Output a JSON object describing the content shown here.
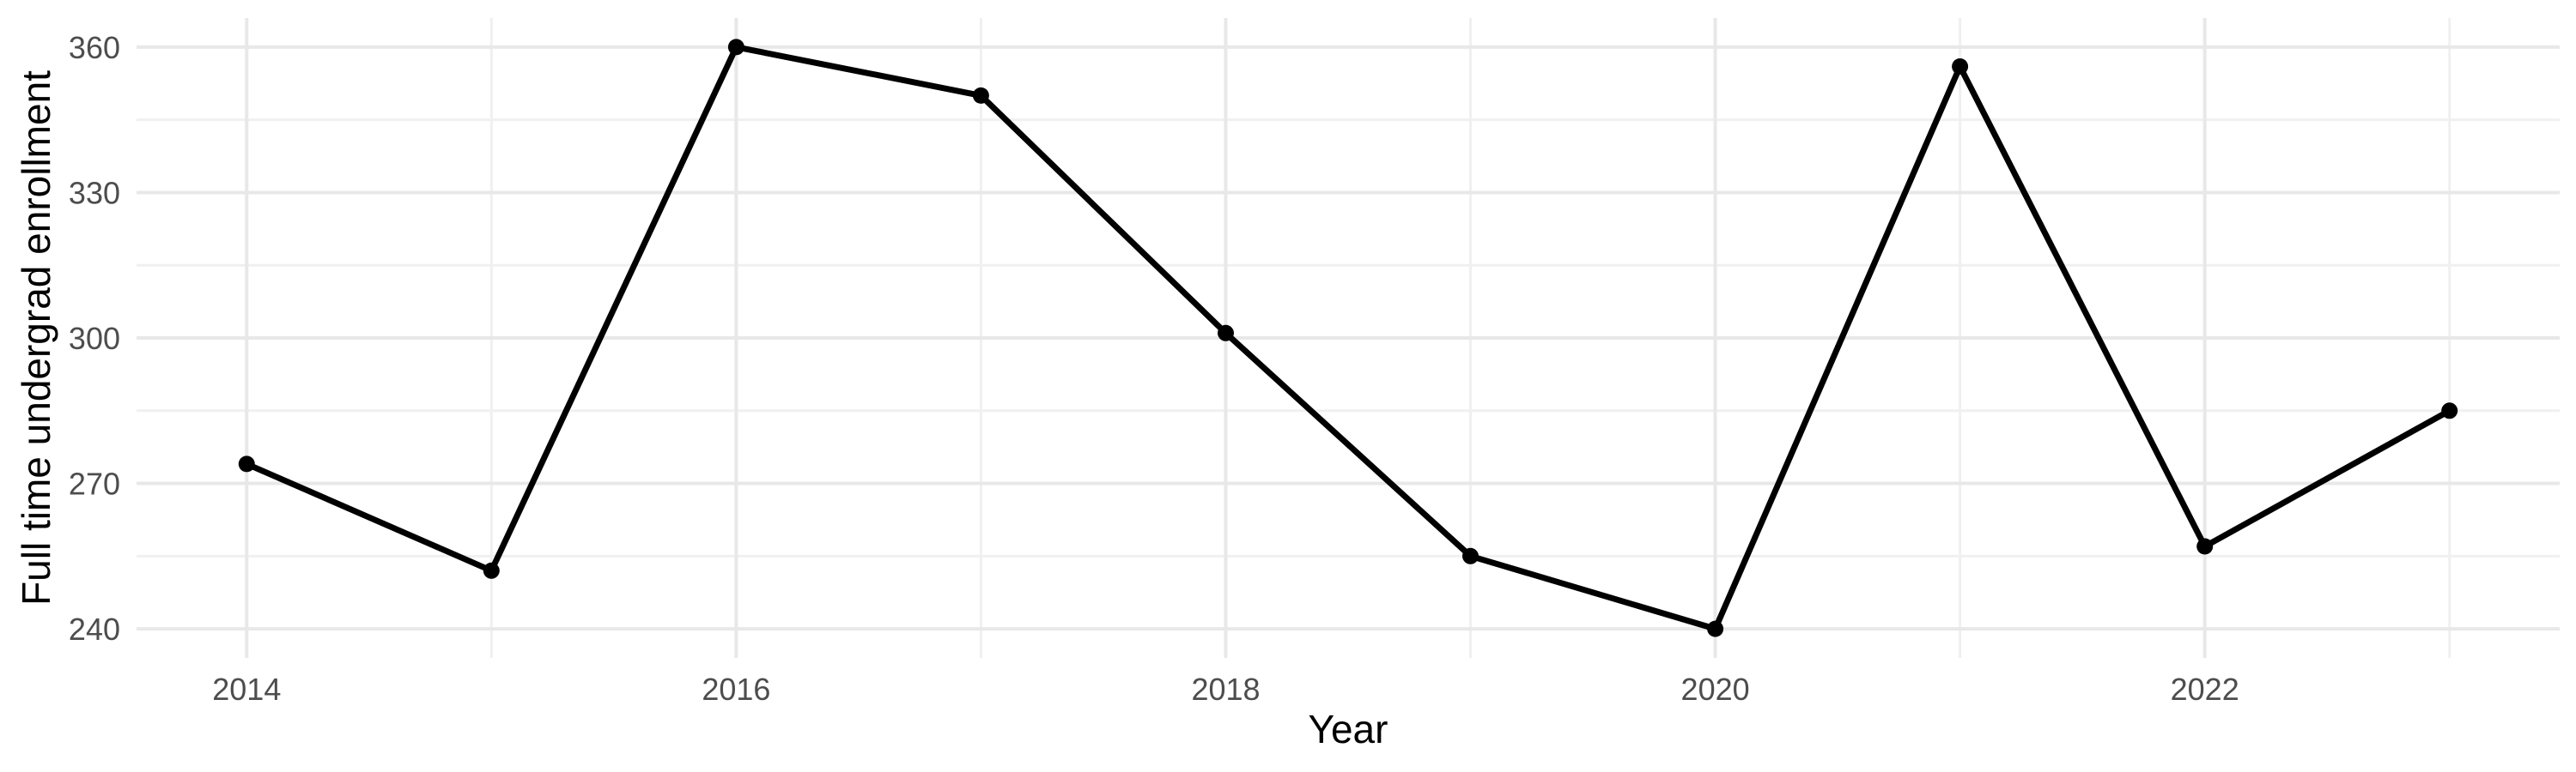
{
  "chart_data": {
    "type": "line",
    "title": "",
    "xlabel": "Year",
    "ylabel": "Full time undergrad enrollment",
    "x": [
      2014,
      2015,
      2016,
      2017,
      2018,
      2019,
      2020,
      2021,
      2022,
      2023
    ],
    "series": [
      {
        "name": "Full time undergrad enrollment",
        "values": [
          274,
          252,
          360,
          350,
          301,
          255,
          240,
          356,
          257,
          285
        ]
      }
    ],
    "xlim": [
      2013.55,
      2023.45
    ],
    "ylim": [
      234,
      366
    ],
    "x_major_ticks": [
      2014,
      2016,
      2018,
      2020,
      2022
    ],
    "x_minor_gridlines": [
      2015,
      2017,
      2019,
      2021,
      2023
    ],
    "y_major_ticks": [
      240,
      270,
      300,
      330,
      360
    ],
    "y_minor_gridlines": [
      255,
      285,
      315,
      345
    ],
    "grid": "on",
    "legend": "none",
    "marker": "filled-circle",
    "colors": {
      "background": "#ffffff",
      "line": "#000000",
      "point": "#000000",
      "grid_major": "#e8e8e8",
      "grid_minor": "#f0f0f0",
      "tick_text": "#4d4d4d",
      "title_text": "#000000"
    }
  }
}
